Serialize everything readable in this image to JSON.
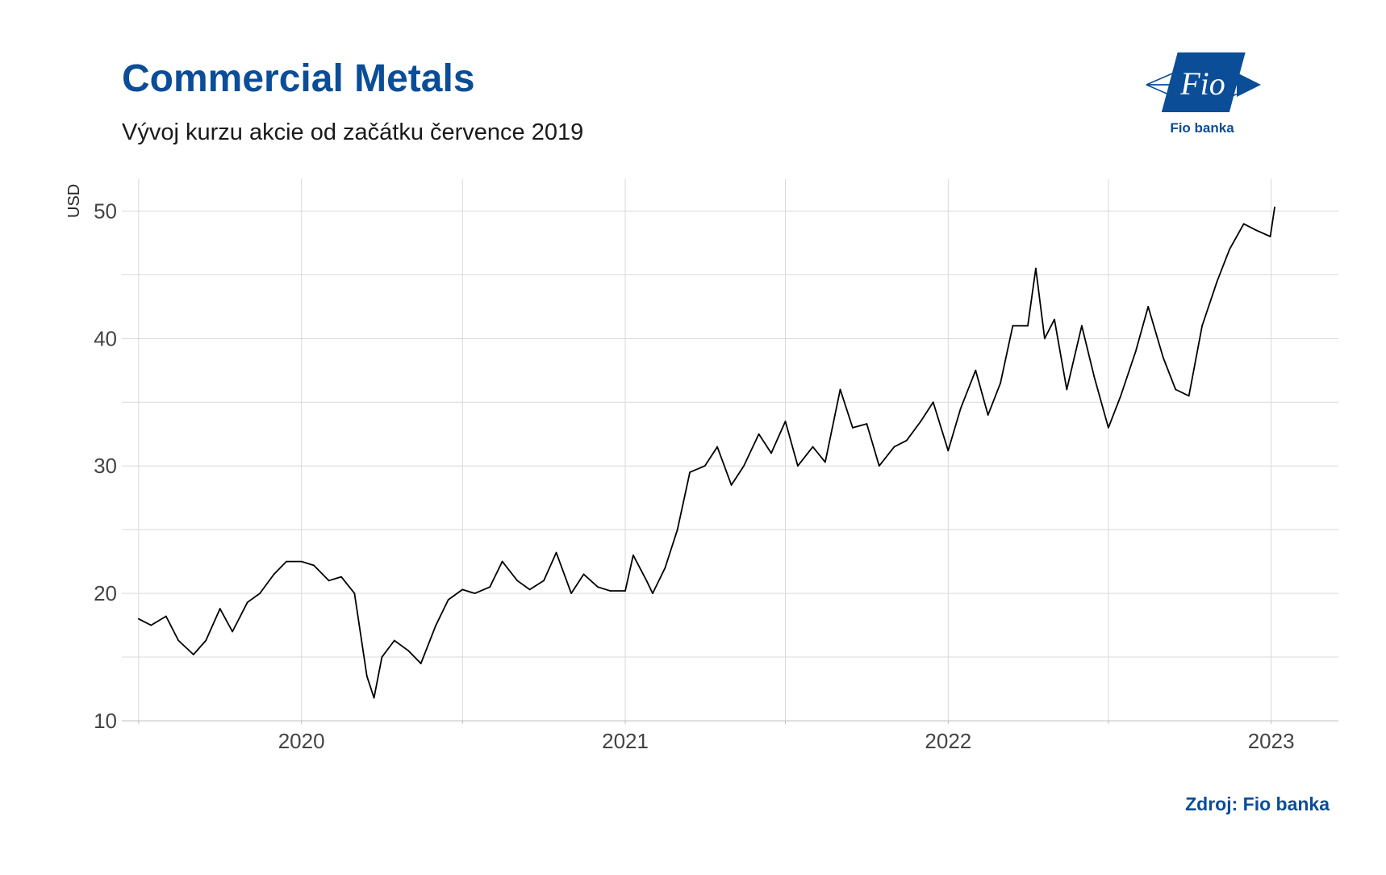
{
  "title": "Commercial Metals",
  "subtitle": "Vývoj kurzu akcie od začátku července 2019",
  "source": "Zdroj: Fio banka",
  "logo": {
    "text": "Fio",
    "caption": "Fio banka",
    "color": "#0b4d97"
  },
  "colors": {
    "title": "#0b4d97",
    "line": "#000000",
    "grid": "#d9d9d9"
  },
  "chart_data": {
    "type": "line",
    "title": "Commercial Metals",
    "subtitle": "Vývoj kurzu akcie od začátku července 2019",
    "xlabel": "",
    "ylabel": "USD",
    "ylim": [
      10,
      52.5
    ],
    "xlim": [
      "2019-06-12",
      "2023-03-18"
    ],
    "x_ticks": [
      "2020",
      "2021",
      "2022",
      "2023"
    ],
    "y_ticks": [
      10,
      20,
      30,
      40,
      50
    ],
    "grid": true,
    "legend": "none",
    "series": [
      {
        "x": [
          "2019-07-01",
          "2019-07-15",
          "2019-08-01",
          "2019-08-15",
          "2019-09-01",
          "2019-09-15",
          "2019-10-01",
          "2019-10-15",
          "2019-11-01",
          "2019-11-15",
          "2019-12-01",
          "2019-12-15",
          "2020-01-01",
          "2020-01-15",
          "2020-02-01",
          "2020-02-15",
          "2020-03-01",
          "2020-03-15",
          "2020-03-23",
          "2020-04-01",
          "2020-04-15",
          "2020-05-01",
          "2020-05-15",
          "2020-06-01",
          "2020-06-15",
          "2020-07-01",
          "2020-07-15",
          "2020-08-01",
          "2020-08-15",
          "2020-09-01",
          "2020-09-15",
          "2020-10-01",
          "2020-10-15",
          "2020-11-01",
          "2020-11-15",
          "2020-12-01",
          "2020-12-15",
          "2021-01-01",
          "2021-01-10",
          "2021-01-25",
          "2021-02-01",
          "2021-02-15",
          "2021-03-01",
          "2021-03-15",
          "2021-04-01",
          "2021-04-15",
          "2021-05-01",
          "2021-05-15",
          "2021-06-01",
          "2021-06-15",
          "2021-07-01",
          "2021-07-15",
          "2021-08-01",
          "2021-08-15",
          "2021-09-01",
          "2021-09-15",
          "2021-10-01",
          "2021-10-15",
          "2021-11-01",
          "2021-11-15",
          "2021-12-01",
          "2021-12-15",
          "2022-01-01",
          "2022-01-15",
          "2022-02-01",
          "2022-02-15",
          "2022-03-01",
          "2022-03-15",
          "2022-04-01",
          "2022-04-10",
          "2022-04-20",
          "2022-05-01",
          "2022-05-15",
          "2022-06-01",
          "2022-06-15",
          "2022-07-01",
          "2022-07-15",
          "2022-08-01",
          "2022-08-15",
          "2022-09-01",
          "2022-09-15",
          "2022-09-30",
          "2022-10-15",
          "2022-11-01",
          "2022-11-15",
          "2022-12-01",
          "2022-12-15",
          "2022-12-31",
          "2023-01-05"
        ],
        "y": [
          18.0,
          17.5,
          18.2,
          16.3,
          15.2,
          16.3,
          18.8,
          17.0,
          19.3,
          20.0,
          21.5,
          22.5,
          22.5,
          22.2,
          21.0,
          21.3,
          20.0,
          13.5,
          11.8,
          15.0,
          16.3,
          15.5,
          14.5,
          17.5,
          19.5,
          20.3,
          20.0,
          20.5,
          22.5,
          21.0,
          20.3,
          21.0,
          23.2,
          20.0,
          21.5,
          20.5,
          20.2,
          20.2,
          23.0,
          21.0,
          20.0,
          22.0,
          25.0,
          29.5,
          30.0,
          31.5,
          28.5,
          30.0,
          32.5,
          31.0,
          33.5,
          30.0,
          31.5,
          30.3,
          36.0,
          33.0,
          33.3,
          30.0,
          31.5,
          32.0,
          33.5,
          35.0,
          31.2,
          34.5,
          37.5,
          34.0,
          36.5,
          41.0,
          41.0,
          45.5,
          40.0,
          41.5,
          36.0,
          41.0,
          37.0,
          33.0,
          35.5,
          39.0,
          42.5,
          38.5,
          36.0,
          35.5,
          41.0,
          44.5,
          47.0,
          49.0,
          48.5,
          48.0,
          50.3
        ]
      }
    ]
  }
}
